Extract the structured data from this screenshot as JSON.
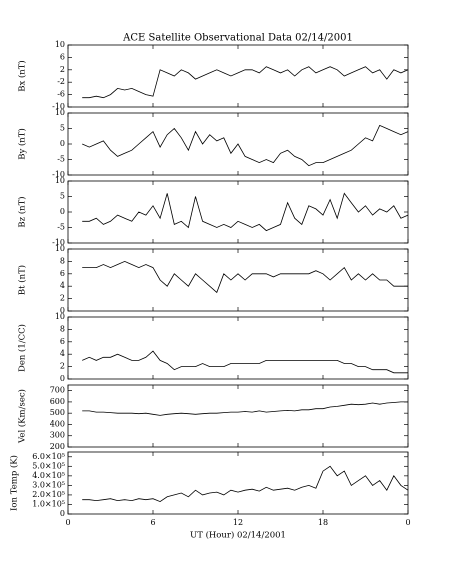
{
  "chart_data": {
    "title": "ACE Satellite Observational Data   02/14/2001",
    "xlabel": "UT (Hour)  02/14/2001",
    "xlim": [
      0,
      24
    ],
    "xticks": [
      0,
      6,
      12,
      18,
      {
        "value": 24,
        "label": "0"
      }
    ],
    "x": [
      1,
      1.5,
      2,
      2.5,
      3,
      3.5,
      4,
      4.5,
      5,
      5.5,
      6,
      6.5,
      7,
      7.5,
      8,
      8.5,
      9,
      9.5,
      10,
      10.5,
      11,
      11.5,
      12,
      12.5,
      13,
      13.5,
      14,
      14.5,
      15,
      15.5,
      16,
      16.5,
      17,
      17.5,
      18,
      18.5,
      19,
      19.5,
      20,
      20.5,
      21,
      21.5,
      22,
      22.5,
      23,
      23.5,
      24
    ],
    "color": "#000000",
    "panels": [
      {
        "type": "line",
        "ylabel": "Bx (nT)",
        "ylim": [
          -10,
          10
        ],
        "yticks": [
          -10,
          -6,
          -2,
          2,
          6,
          10
        ],
        "values": [
          -7,
          -7,
          -6.5,
          -7,
          -6,
          -4,
          -4.5,
          -4,
          -5,
          -6,
          -6.5,
          2,
          1,
          0,
          2,
          1,
          -1,
          0,
          1,
          2,
          1,
          0,
          1,
          2,
          2,
          1,
          3,
          2,
          1,
          2,
          0,
          2,
          3,
          1,
          2,
          3,
          2,
          0,
          1,
          2,
          3,
          1,
          2,
          -1,
          2,
          1,
          2
        ]
      },
      {
        "type": "line",
        "ylabel": "By (nT)",
        "ylim": [
          -10,
          10
        ],
        "yticks": [
          -10,
          -5,
          0,
          5,
          10
        ],
        "values": [
          0,
          -1,
          0,
          1,
          -2,
          -4,
          -3,
          -2,
          0,
          2,
          4,
          -1,
          3,
          5,
          2,
          -2,
          4,
          0,
          3,
          1,
          2,
          -3,
          0,
          -4,
          -5,
          -6,
          -5,
          -6,
          -3,
          -2,
          -4,
          -5,
          -7,
          -6,
          -6,
          -5,
          -4,
          -3,
          -2,
          0,
          2,
          1,
          6,
          5,
          4,
          3,
          4
        ]
      },
      {
        "type": "line",
        "ylabel": "Bz (nT)",
        "ylim": [
          -10,
          10
        ],
        "yticks": [
          -10,
          -5,
          0,
          5,
          10
        ],
        "values": [
          -3,
          -3,
          -2,
          -4,
          -3,
          -1,
          -2,
          -3,
          0,
          -1,
          2,
          -2,
          6,
          -4,
          -3,
          -5,
          5,
          -3,
          -4,
          -5,
          -4,
          -5,
          -3,
          -4,
          -5,
          -4,
          -6,
          -5,
          -4,
          3,
          -2,
          -4,
          2,
          1,
          -1,
          4,
          -2,
          6,
          3,
          0,
          2,
          -1,
          1,
          0,
          2,
          -2,
          -1
        ]
      },
      {
        "type": "line",
        "ylabel": "Bt (nT)",
        "ylim": [
          0,
          10
        ],
        "yticks": [
          0,
          2,
          4,
          6,
          8,
          10
        ],
        "values": [
          7,
          7,
          7,
          7.5,
          7,
          7.5,
          8,
          7.5,
          7,
          7.5,
          7,
          5,
          4,
          6,
          5,
          4,
          6,
          5,
          4,
          3,
          6,
          5,
          6,
          5,
          6,
          6,
          6,
          5.5,
          6,
          6,
          6,
          6,
          6,
          6.5,
          6,
          5,
          6,
          7,
          5,
          6,
          5,
          6,
          5,
          5,
          4,
          4,
          4
        ]
      },
      {
        "type": "line",
        "ylabel": "Den (1/CC)",
        "ylim": [
          0,
          10
        ],
        "yticks": [
          0,
          2,
          4,
          6,
          8,
          10
        ],
        "values": [
          3,
          3.5,
          3,
          3.5,
          3.5,
          4,
          3.5,
          3,
          3,
          3.5,
          4.5,
          3,
          2.5,
          1.5,
          2,
          2,
          2,
          2.5,
          2,
          2,
          2,
          2.5,
          2.5,
          2.5,
          2.5,
          2.5,
          3,
          3,
          3,
          3,
          3,
          3,
          3,
          3,
          3,
          3,
          3,
          2.5,
          2.5,
          2,
          2,
          1.5,
          1.5,
          1.5,
          1,
          1,
          1
        ]
      },
      {
        "type": "line",
        "ylabel": "Vel (Km/sec)",
        "ylim": [
          200,
          750
        ],
        "yticks": [
          200,
          300,
          400,
          500,
          600,
          700
        ],
        "values": [
          520,
          520,
          510,
          510,
          505,
          500,
          500,
          500,
          495,
          500,
          490,
          480,
          490,
          495,
          500,
          495,
          490,
          495,
          500,
          500,
          505,
          510,
          510,
          515,
          510,
          520,
          510,
          515,
          520,
          525,
          520,
          530,
          530,
          540,
          540,
          555,
          560,
          570,
          580,
          575,
          580,
          590,
          580,
          590,
          595,
          600,
          600
        ]
      },
      {
        "type": "line",
        "ylabel": "Ion Temp (K)",
        "ylim": [
          0,
          650000
        ],
        "yticks": [
          0,
          {
            "value": 100000,
            "label": "1.0×10⁵"
          },
          {
            "value": 200000,
            "label": "2.0×10⁵"
          },
          {
            "value": 300000,
            "label": "3.0×10⁵"
          },
          {
            "value": 400000,
            "label": "4.0×10⁵"
          },
          {
            "value": 500000,
            "label": "5.0×10⁵"
          },
          {
            "value": 600000,
            "label": "6.0×10⁵"
          }
        ],
        "values": [
          150000,
          150000,
          140000,
          150000,
          160000,
          140000,
          150000,
          140000,
          160000,
          150000,
          160000,
          130000,
          180000,
          200000,
          220000,
          180000,
          250000,
          200000,
          220000,
          230000,
          200000,
          250000,
          230000,
          250000,
          260000,
          240000,
          280000,
          250000,
          260000,
          270000,
          250000,
          280000,
          300000,
          270000,
          450000,
          500000,
          400000,
          450000,
          300000,
          350000,
          400000,
          300000,
          350000,
          250000,
          400000,
          300000,
          250000
        ]
      }
    ]
  }
}
